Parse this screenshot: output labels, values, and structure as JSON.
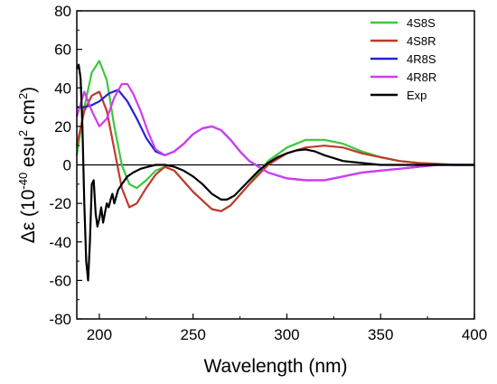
{
  "chart_data": {
    "type": "line",
    "xlabel": "Wavelength (nm)",
    "ylabel_prefix": "Δε (10",
    "ylabel_exp1": "-40",
    "ylabel_mid": " esu",
    "ylabel_exp2": "2",
    "ylabel_mid2": " cm",
    "ylabel_exp3": "2",
    "ylabel_suffix": ")",
    "xlim": [
      188,
      400
    ],
    "ylim": [
      -80,
      80
    ],
    "xticks": [
      200,
      250,
      300,
      350,
      400
    ],
    "yticks": [
      -80,
      -60,
      -40,
      -20,
      0,
      20,
      40,
      60,
      80
    ],
    "legend_position": "top-right",
    "series": [
      {
        "name": "4S8S",
        "color": "#3cc83c",
        "x": [
          188,
          192,
          196,
          200,
          204,
          208,
          212,
          216,
          220,
          225,
          230,
          235,
          240,
          250,
          260,
          265,
          270,
          280,
          290,
          300,
          310,
          320,
          330,
          340,
          350,
          360,
          370,
          380,
          390,
          400
        ],
        "y": [
          5,
          30,
          48,
          54,
          44,
          20,
          0,
          -10,
          -12,
          -8,
          -3,
          -1,
          -3,
          -14,
          -23,
          -24,
          -21,
          -10,
          2,
          9,
          13,
          13,
          11,
          7,
          4,
          2,
          1,
          0.5,
          0,
          0
        ]
      },
      {
        "name": "4S8R",
        "color": "#c0392b",
        "x": [
          188,
          192,
          196,
          200,
          204,
          208,
          212,
          216,
          220,
          225,
          230,
          235,
          240,
          250,
          260,
          265,
          270,
          280,
          290,
          300,
          310,
          320,
          330,
          340,
          350,
          360,
          370,
          380,
          390,
          400
        ],
        "y": [
          10,
          28,
          36,
          38,
          28,
          8,
          -12,
          -22,
          -20,
          -12,
          -5,
          -1,
          -3,
          -14,
          -23,
          -24,
          -21,
          -10,
          0,
          6,
          9,
          10,
          9,
          6,
          4,
          2,
          1,
          0.5,
          0,
          0
        ]
      },
      {
        "name": "4R8S",
        "color": "#2222dd",
        "x": [
          188,
          192,
          196,
          200,
          205,
          210,
          215,
          220,
          225,
          230,
          235,
          240,
          245,
          250,
          255,
          260,
          265,
          270,
          275,
          280,
          290,
          300,
          310,
          320,
          330,
          340,
          350,
          360,
          370,
          380,
          390,
          400
        ],
        "y": [
          30,
          30,
          31,
          33,
          37,
          39,
          33,
          24,
          14,
          7,
          5,
          7,
          11,
          16,
          19,
          20,
          18,
          13,
          7,
          2,
          -4,
          -7,
          -8,
          -8,
          -6,
          -4,
          -3,
          -2,
          -1,
          0,
          0,
          0
        ]
      },
      {
        "name": "4R8R",
        "color": "#d23cf0",
        "x": [
          188,
          192,
          196,
          200,
          204,
          208,
          212,
          215,
          218,
          222,
          226,
          230,
          235,
          240,
          245,
          250,
          255,
          260,
          265,
          270,
          275,
          280,
          290,
          300,
          310,
          320,
          330,
          340,
          350,
          360,
          370,
          380,
          390,
          400
        ],
        "y": [
          25,
          38,
          28,
          20,
          24,
          35,
          42,
          42,
          37,
          28,
          17,
          8,
          5,
          7,
          11,
          16,
          19,
          20,
          18,
          13,
          7,
          2,
          -4,
          -7,
          -8,
          -8,
          -6,
          -4,
          -3,
          -2,
          -1,
          0,
          0,
          0
        ]
      },
      {
        "name": "Exp",
        "color": "#000000",
        "x": [
          188,
          189,
          190,
          191,
          192,
          193,
          194,
          195,
          196,
          197,
          198,
          199,
          200,
          201,
          202,
          203,
          204,
          205,
          206,
          207,
          208,
          210,
          212,
          215,
          218,
          222,
          226,
          230,
          235,
          240,
          245,
          250,
          255,
          260,
          265,
          268,
          272,
          276,
          280,
          285,
          290,
          295,
          300,
          305,
          310,
          315,
          320,
          330,
          340,
          350,
          360,
          380,
          400
        ],
        "y": [
          50,
          52,
          45,
          20,
          -20,
          -50,
          -60,
          -40,
          -10,
          -8,
          -25,
          -32,
          -28,
          -22,
          -30,
          -25,
          -20,
          -22,
          -18,
          -15,
          -20,
          -13,
          -10,
          -6,
          -4,
          -2,
          -1,
          0,
          0,
          -1,
          -3,
          -6,
          -10,
          -15,
          -18,
          -18,
          -16,
          -12,
          -8,
          -3,
          1,
          4,
          6,
          7.5,
          8,
          7,
          5,
          2,
          1,
          0,
          0,
          0,
          0
        ]
      }
    ]
  }
}
